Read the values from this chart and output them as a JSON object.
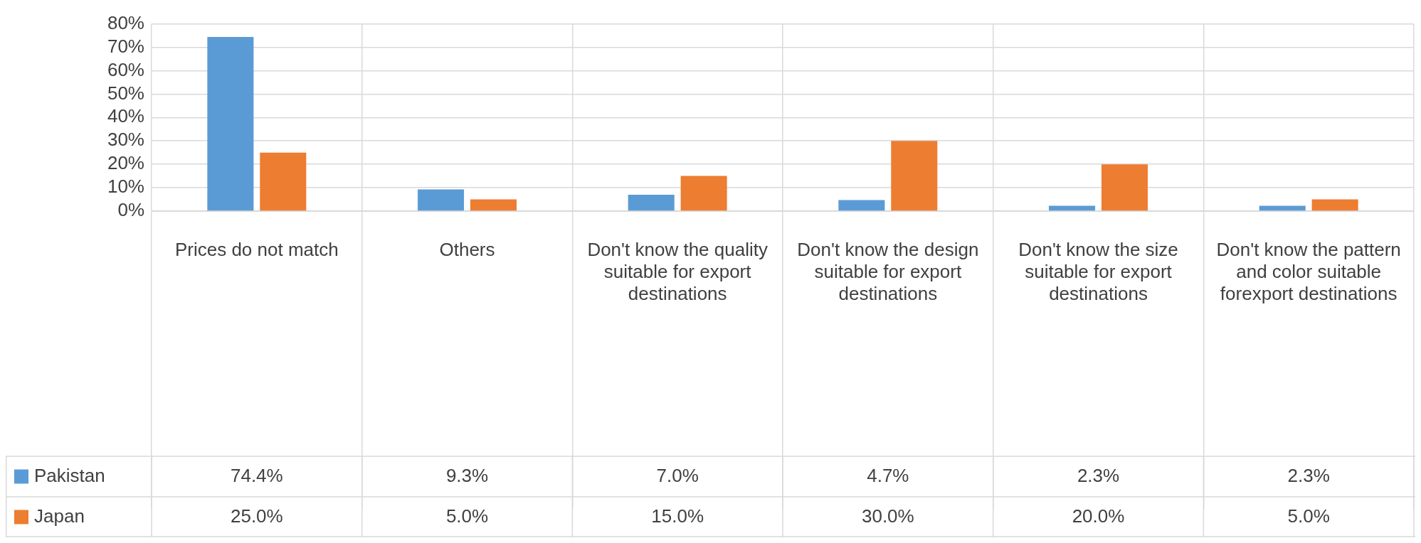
{
  "chart_data": {
    "type": "bar",
    "categories": [
      "Prices do not match",
      "Others",
      "Don't know the quality suitable for export destinations",
      "Don't know the design suitable for export destinations",
      "Don't know the size suitable for export destinations",
      "Don't know the pattern and color suitable forexport destinations"
    ],
    "series": [
      {
        "name": "Pakistan",
        "color": "#5b9bd5",
        "values": [
          74.4,
          9.3,
          7.0,
          4.7,
          2.3,
          2.3
        ],
        "value_labels": [
          "74.4%",
          "9.3%",
          "7.0%",
          "4.7%",
          "2.3%",
          "2.3%"
        ]
      },
      {
        "name": "Japan",
        "color": "#ed7d31",
        "values": [
          25.0,
          5.0,
          15.0,
          30.0,
          20.0,
          5.0
        ],
        "value_labels": [
          "25.0%",
          "5.0%",
          "15.0%",
          "30.0%",
          "20.0%",
          "5.0%"
        ]
      }
    ],
    "ylim": [
      0,
      80
    ],
    "yticks": [
      {
        "value": 0,
        "label": "0%"
      },
      {
        "value": 10,
        "label": "10%"
      },
      {
        "value": 20,
        "label": "20%"
      },
      {
        "value": 30,
        "label": "30%"
      },
      {
        "value": 40,
        "label": "40%"
      },
      {
        "value": 50,
        "label": "50%"
      },
      {
        "value": 60,
        "label": "60%"
      },
      {
        "value": 70,
        "label": "70%"
      },
      {
        "value": 80,
        "label": "80%"
      }
    ],
    "grid": true,
    "legend": "bottom left"
  }
}
